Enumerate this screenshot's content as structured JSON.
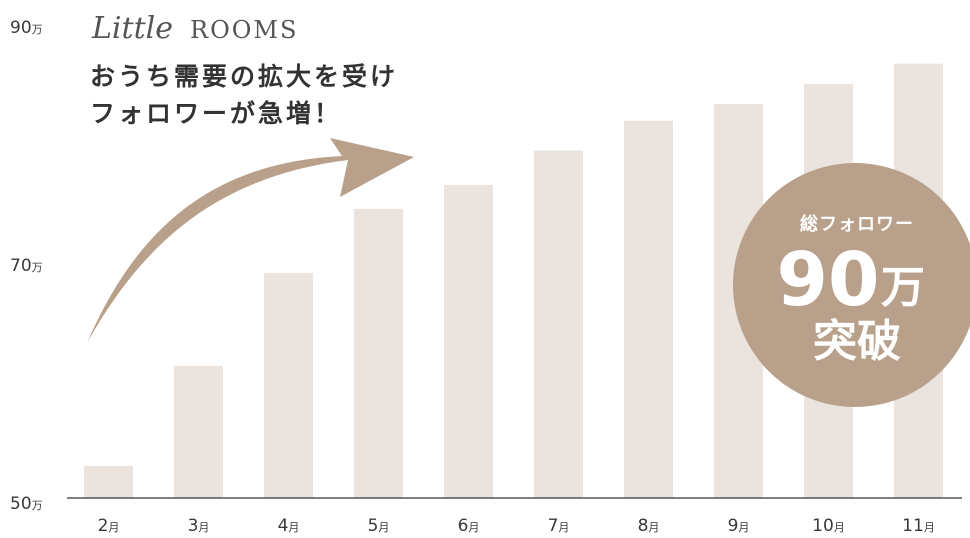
{
  "brand": {
    "script": "Little",
    "caps": "ROOMS"
  },
  "headline": [
    "おうち需要の拡大を受け",
    "フォロワーが急増！"
  ],
  "badge": {
    "line1": "総フォロワー",
    "number": "90",
    "unit": "万",
    "line3": "突破"
  },
  "colors": {
    "bar": "#ebe3dd",
    "arrow": "#b9a08a",
    "badge": "#b9a08a",
    "axis": "#555555",
    "text": "#333333"
  },
  "chart_data": {
    "type": "bar",
    "categories": [
      "2月",
      "3月",
      "4月",
      "5月",
      "6月",
      "7月",
      "8月",
      "9月",
      "10月",
      "11月"
    ],
    "x_labels": [
      {
        "num": "2",
        "unit": "月"
      },
      {
        "num": "3",
        "unit": "月"
      },
      {
        "num": "4",
        "unit": "月"
      },
      {
        "num": "5",
        "unit": "月"
      },
      {
        "num": "6",
        "unit": "月"
      },
      {
        "num": "7",
        "unit": "月"
      },
      {
        "num": "8",
        "unit": "月"
      },
      {
        "num": "9",
        "unit": "月"
      },
      {
        "num": "10",
        "unit": "月"
      },
      {
        "num": "11",
        "unit": "月"
      }
    ],
    "values": [
      52.7,
      61.1,
      68.9,
      74.3,
      76.3,
      79.2,
      81.7,
      83.1,
      84.8,
      86.5
    ],
    "y_ticks": [
      {
        "value": 50,
        "num": "50",
        "unit": "万"
      },
      {
        "value": 70,
        "num": "70",
        "unit": "万"
      },
      {
        "value": 90,
        "num": "90",
        "unit": "万"
      }
    ],
    "ylim": [
      50,
      90
    ],
    "title": "",
    "xlabel": "",
    "ylabel": "",
    "grid": false
  }
}
